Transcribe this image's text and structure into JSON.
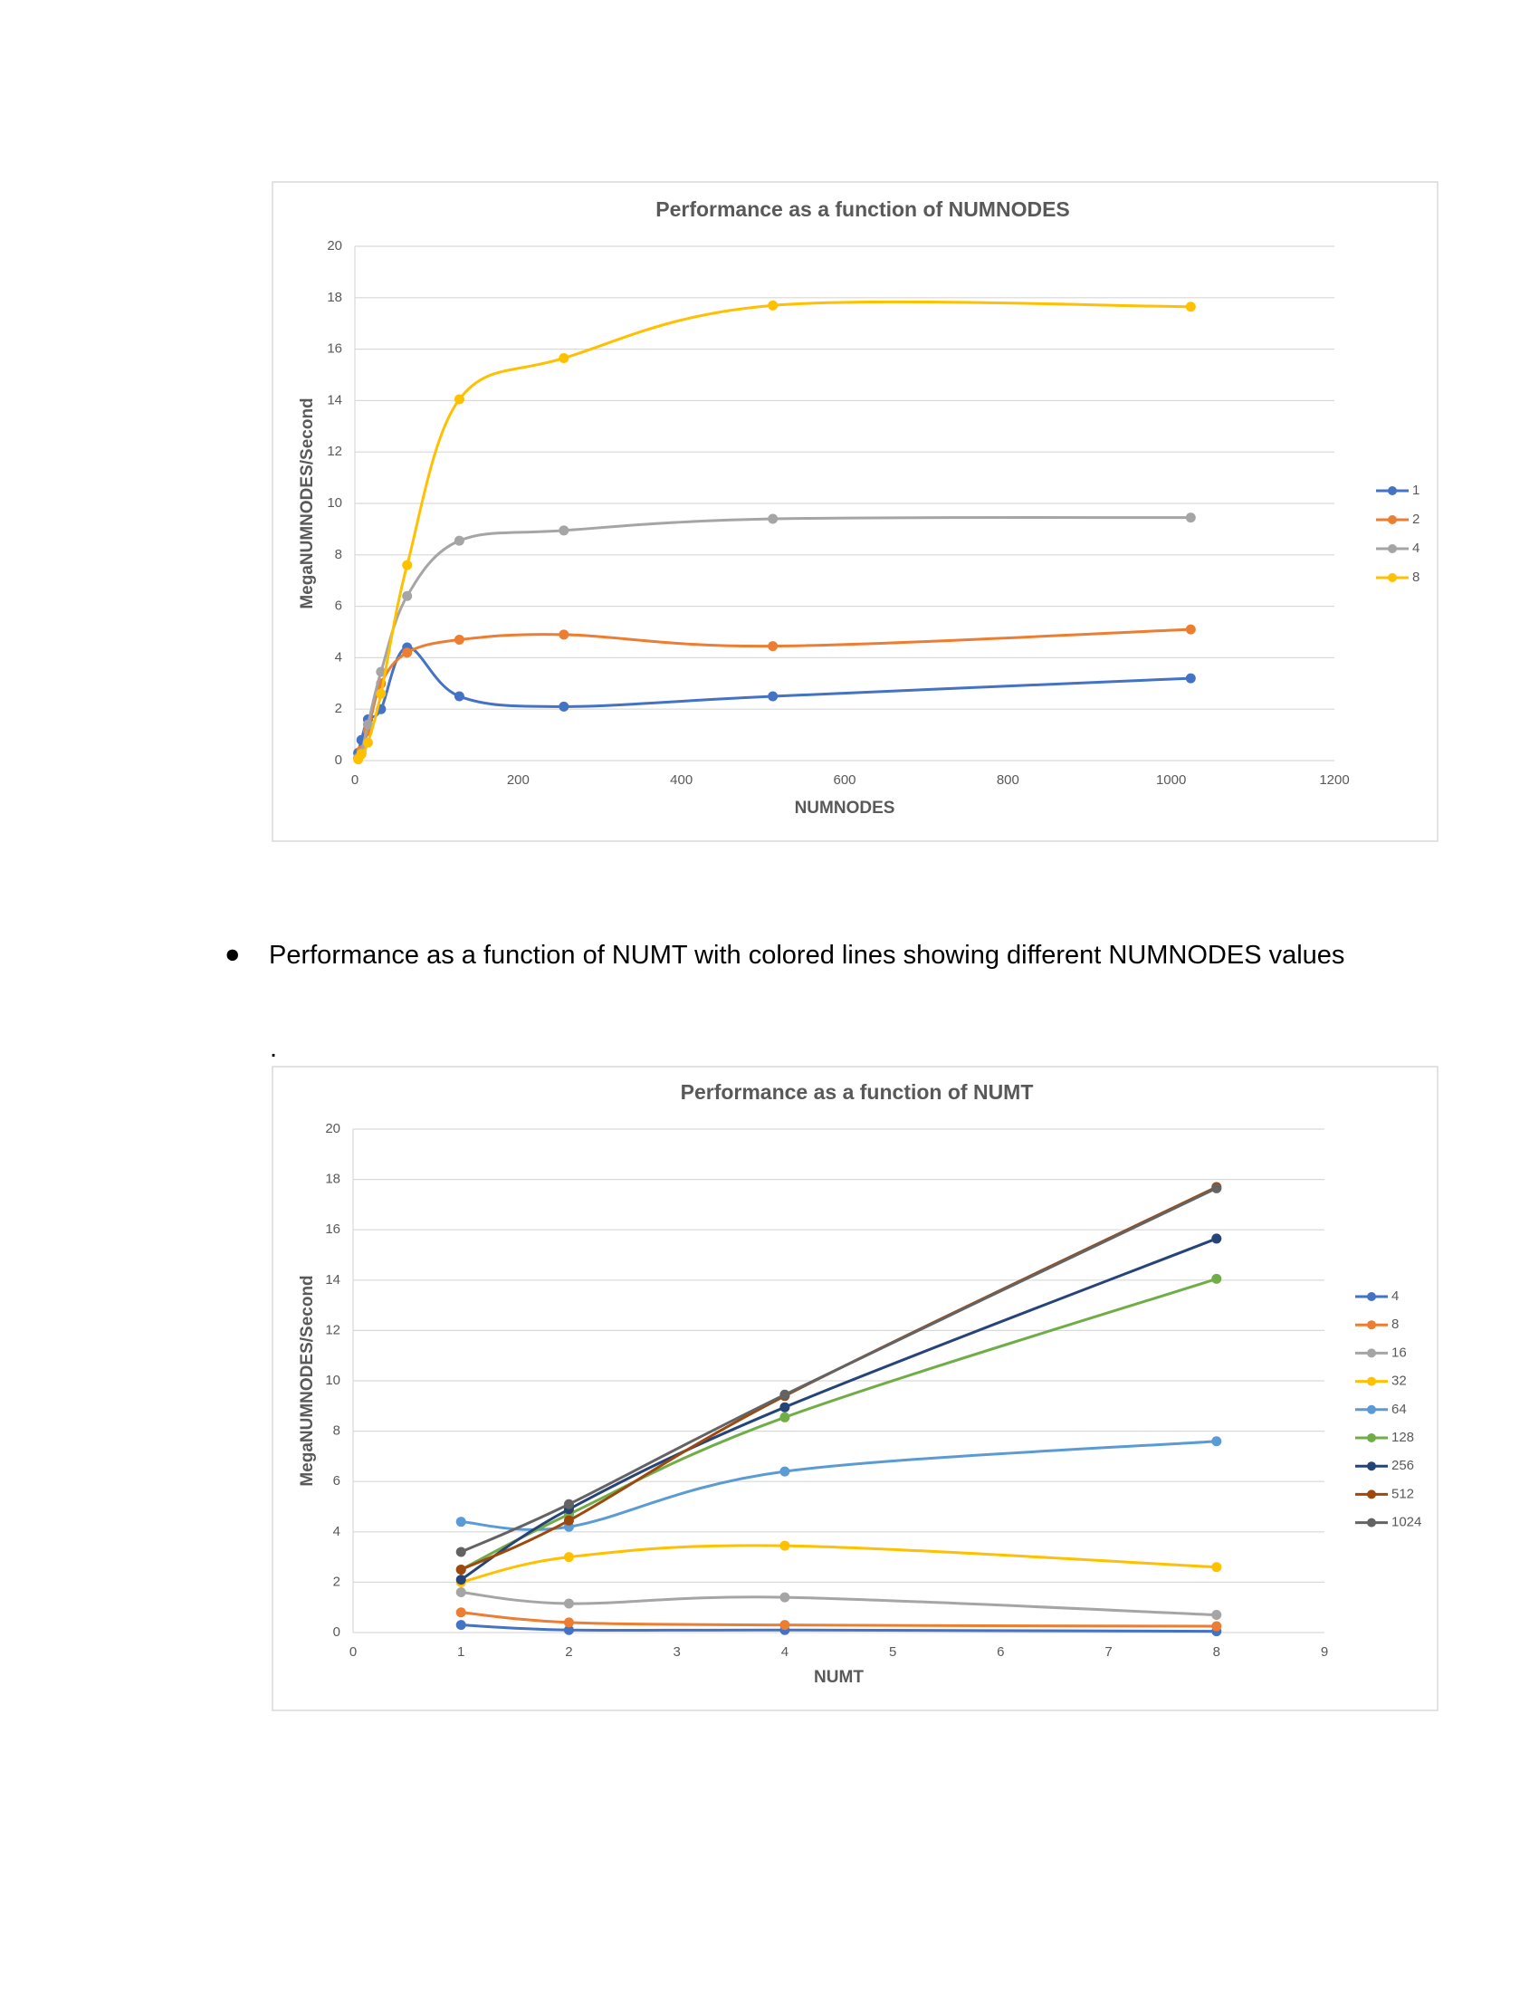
{
  "chart_data": [
    {
      "type": "line",
      "title": "Performance as a function of NUMNODES",
      "x_label": "NUMNODES",
      "y_label": "MegaNUMNODES/Second",
      "x": [
        4,
        8,
        16,
        32,
        64,
        128,
        256,
        512,
        1024
      ],
      "xlim": [
        0,
        1200
      ],
      "xticks": [
        0,
        200,
        400,
        600,
        800,
        1000,
        1200
      ],
      "ylim": [
        0,
        20
      ],
      "yticks": [
        0,
        2,
        4,
        6,
        8,
        10,
        12,
        14,
        16,
        18,
        20
      ],
      "grid": true,
      "smooth": true,
      "legend": "right",
      "series": [
        {
          "name": "1",
          "color": "#4472c4",
          "values": [
            0.3,
            0.8,
            1.6,
            2.0,
            4.4,
            2.5,
            2.1,
            2.5,
            3.2
          ]
        },
        {
          "name": "2",
          "color": "#ed7d31",
          "values": [
            0.1,
            0.4,
            1.15,
            3.0,
            4.2,
            4.7,
            4.9,
            4.45,
            5.1
          ]
        },
        {
          "name": "4",
          "color": "#a5a5a5",
          "values": [
            0.1,
            0.3,
            1.4,
            3.45,
            6.4,
            8.55,
            8.95,
            9.4,
            9.45
          ]
        },
        {
          "name": "8",
          "color": "#ffc000",
          "values": [
            0.05,
            0.25,
            0.7,
            2.6,
            7.6,
            14.05,
            15.65,
            17.7,
            17.65
          ]
        }
      ]
    },
    {
      "type": "line",
      "title": "Performance as a function of NUMT",
      "x_label": "NUMT",
      "y_label": "MegaNUMNODES/Second",
      "x": [
        1,
        2,
        4,
        8
      ],
      "xlim": [
        0,
        9
      ],
      "xticks": [
        0,
        1,
        2,
        3,
        4,
        5,
        6,
        7,
        8,
        9
      ],
      "ylim": [
        0,
        20
      ],
      "yticks": [
        0,
        2,
        4,
        6,
        8,
        10,
        12,
        14,
        16,
        18,
        20
      ],
      "grid": true,
      "smooth": true,
      "legend": "right",
      "series": [
        {
          "name": "4",
          "color": "#4472c4",
          "values": [
            0.3,
            0.1,
            0.1,
            0.05
          ]
        },
        {
          "name": "8",
          "color": "#ed7d31",
          "values": [
            0.8,
            0.4,
            0.3,
            0.25
          ]
        },
        {
          "name": "16",
          "color": "#a5a5a5",
          "values": [
            1.6,
            1.15,
            1.4,
            0.7
          ]
        },
        {
          "name": "32",
          "color": "#ffc000",
          "values": [
            2.0,
            3.0,
            3.45,
            2.6
          ]
        },
        {
          "name": "64",
          "color": "#5b9bd5",
          "values": [
            4.4,
            4.2,
            6.4,
            7.6
          ]
        },
        {
          "name": "128",
          "color": "#70ad47",
          "values": [
            2.5,
            4.7,
            8.55,
            14.05
          ]
        },
        {
          "name": "256",
          "color": "#264478",
          "values": [
            2.1,
            4.9,
            8.95,
            15.65
          ]
        },
        {
          "name": "512",
          "color": "#9e480e",
          "values": [
            2.5,
            4.45,
            9.4,
            17.7
          ]
        },
        {
          "name": "1024",
          "color": "#636363",
          "values": [
            3.2,
            5.1,
            9.45,
            17.65
          ]
        }
      ]
    }
  ],
  "bullet_text": "Performance as a function of NUMT with colored lines showing different NUMNODES values",
  "note": "."
}
